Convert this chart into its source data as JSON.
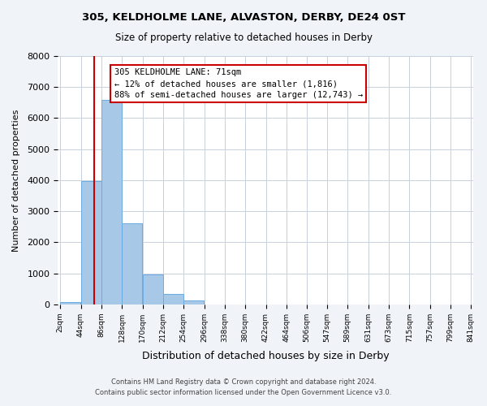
{
  "title1": "305, KELDHOLME LANE, ALVASTON, DERBY, DE24 0ST",
  "title2": "Size of property relative to detached houses in Derby",
  "xlabel": "Distribution of detached houses by size in Derby",
  "ylabel": "Number of detached properties",
  "bin_edges": [
    2,
    44,
    86,
    128,
    170,
    212,
    254,
    296,
    338,
    380,
    422,
    464,
    506,
    547,
    589,
    631,
    673,
    715,
    757,
    799,
    841
  ],
  "bin_labels": [
    "2sqm",
    "44sqm",
    "86sqm",
    "128sqm",
    "170sqm",
    "212sqm",
    "254sqm",
    "296sqm",
    "338sqm",
    "380sqm",
    "422sqm",
    "464sqm",
    "506sqm",
    "547sqm",
    "589sqm",
    "631sqm",
    "673sqm",
    "715sqm",
    "757sqm",
    "799sqm",
    "841sqm"
  ],
  "bar_heights": [
    70,
    3980,
    6580,
    2620,
    960,
    330,
    120,
    0,
    0,
    0,
    0,
    0,
    0,
    0,
    0,
    0,
    0,
    0,
    0,
    0
  ],
  "bar_color": "#a8c8e8",
  "bar_edge_color": "#6aabe0",
  "property_line_x": 71,
  "property_line_color": "#cc0000",
  "annotation_box_color": "#cc0000",
  "annotation_line1": "305 KELDHOLME LANE: 71sqm",
  "annotation_line2": "← 12% of detached houses are smaller (1,816)",
  "annotation_line3": "88% of semi-detached houses are larger (12,743) →",
  "ylim": [
    0,
    8000
  ],
  "yticks": [
    0,
    1000,
    2000,
    3000,
    4000,
    5000,
    6000,
    7000,
    8000
  ],
  "footer1": "Contains HM Land Registry data © Crown copyright and database right 2024.",
  "footer2": "Contains public sector information licensed under the Open Government Licence v3.0.",
  "bg_color": "#f0f4f8",
  "plot_bg_color": "#ffffff",
  "grid_color": "#c8d0dc"
}
